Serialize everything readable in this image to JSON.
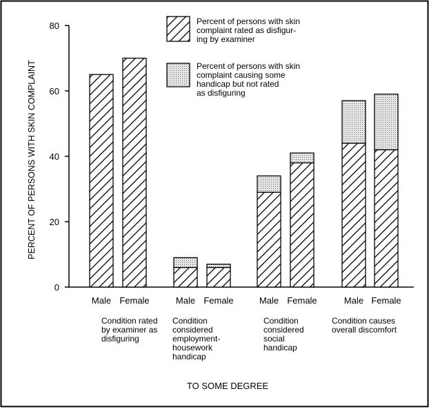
{
  "chart_data": {
    "type": "bar",
    "stacked": true,
    "ylabel": "PERCENT OF PERSONS WITH SKIN COMPLAINT",
    "xlabel": "TO SOME DEGREE",
    "ylim": [
      0,
      80
    ],
    "yticks": [
      0,
      20,
      40,
      60,
      80
    ],
    "tick_labels": [
      "0",
      "20",
      "40",
      "60",
      "80"
    ],
    "groups": [
      {
        "lines": [
          "Condition rated",
          "by examiner as",
          "disfiguring"
        ]
      },
      {
        "lines": [
          "Condition",
          "considered",
          "employment-",
          "housework",
          "handicap"
        ]
      },
      {
        "lines": [
          "Condition",
          "considered",
          "social",
          "handicap"
        ]
      },
      {
        "lines": [
          "Condition causes",
          "overall discomfort"
        ]
      }
    ],
    "bar_labels": [
      "Male",
      "Female"
    ],
    "series": [
      {
        "name": "Percent of persons with skin complaint rated as disfiguring by examiner",
        "legend_lines": [
          "Percent of persons with skin",
          "complaint rated as disfigur-",
          "ing by examiner"
        ],
        "pattern": "hatched",
        "values": [
          65,
          70,
          6,
          6,
          29,
          38,
          44,
          42
        ]
      },
      {
        "name": "Percent of persons with skin complaint causing some handicap but not rated as disfiguring",
        "legend_lines": [
          "Percent of persons with skin",
          "complaint causing some",
          "handicap but not rated",
          "as disfiguring"
        ],
        "pattern": "dotted",
        "values": [
          0,
          0,
          3,
          1,
          5,
          3,
          13,
          17
        ]
      }
    ],
    "legend_position": "top-right",
    "grid": false
  }
}
